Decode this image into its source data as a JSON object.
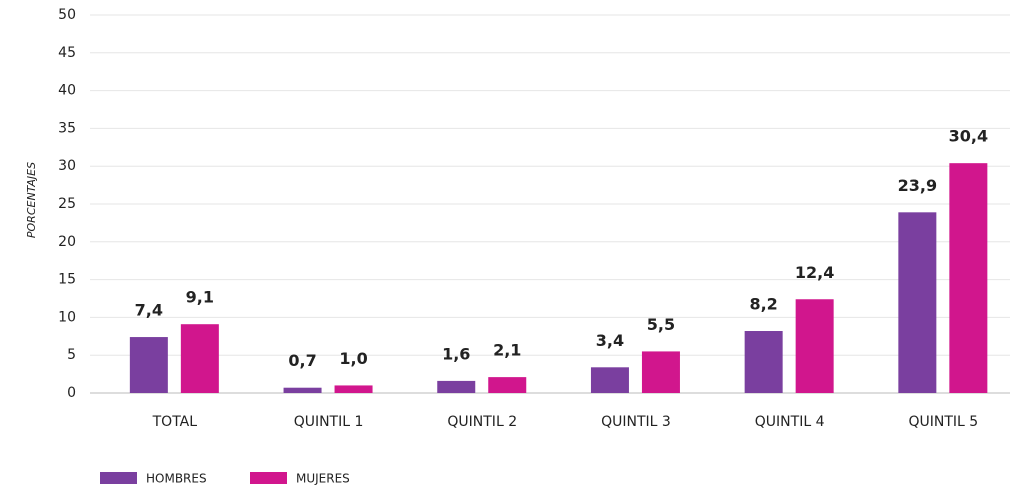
{
  "chart_data": {
    "type": "bar",
    "y_label": "PORCENTAJES",
    "categories": [
      "TOTAL",
      "QUINTIL 1",
      "QUINTIL 2",
      "QUINTIL 3",
      "QUINTIL 4",
      "QUINTIL 5"
    ],
    "series": [
      {
        "name": "HOMBRES",
        "color": "#7a3f9f",
        "values": [
          7.4,
          0.7,
          1.6,
          3.4,
          8.2,
          23.9
        ],
        "value_labels": [
          "7,4",
          "0,7",
          "1,6",
          "3,4",
          "8,2",
          "23,9"
        ]
      },
      {
        "name": "MUJERES",
        "color": "#d1168d",
        "values": [
          9.1,
          1.0,
          2.1,
          5.5,
          12.4,
          30.4
        ],
        "value_labels": [
          "9,1",
          "1,0",
          "2,1",
          "5,5",
          "12,4",
          "30,4"
        ]
      }
    ],
    "ylim": [
      0,
      50
    ],
    "yticks": [
      0,
      5,
      10,
      15,
      20,
      25,
      30,
      35,
      40,
      45,
      50
    ],
    "grid": true
  }
}
